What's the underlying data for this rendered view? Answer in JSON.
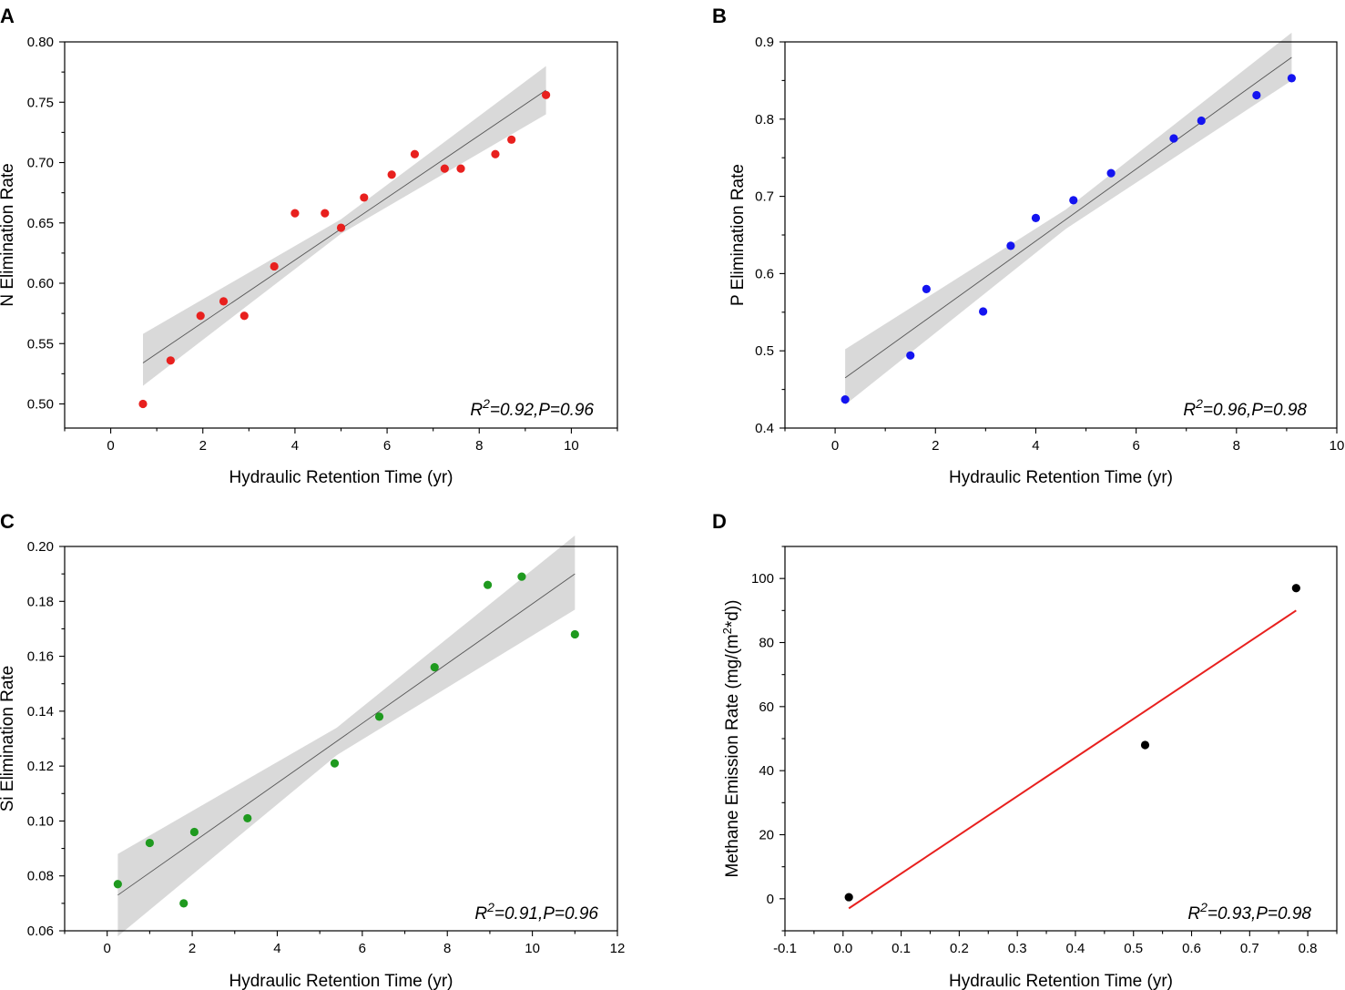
{
  "chart_data": [
    {
      "panel": "A",
      "type": "scatter",
      "xlabel": "Hydraulic Retention Time (yr)",
      "ylabel": "N Elimination Rate",
      "xlim": [
        -1,
        11
      ],
      "ylim": [
        0.48,
        0.8
      ],
      "xticks": [
        0,
        2,
        4,
        6,
        8,
        10
      ],
      "yticks": [
        0.5,
        0.55,
        0.6,
        0.65,
        0.7,
        0.75,
        0.8
      ],
      "ytick_decimals": 2,
      "point_color": "#e8201e",
      "points": [
        {
          "x": 0.7,
          "y": 0.5
        },
        {
          "x": 1.3,
          "y": 0.536
        },
        {
          "x": 1.95,
          "y": 0.573
        },
        {
          "x": 2.45,
          "y": 0.585
        },
        {
          "x": 2.9,
          "y": 0.573
        },
        {
          "x": 3.55,
          "y": 0.614
        },
        {
          "x": 4.0,
          "y": 0.658
        },
        {
          "x": 4.65,
          "y": 0.658
        },
        {
          "x": 5.0,
          "y": 0.646
        },
        {
          "x": 5.5,
          "y": 0.671
        },
        {
          "x": 6.1,
          "y": 0.69
        },
        {
          "x": 6.6,
          "y": 0.707
        },
        {
          "x": 7.25,
          "y": 0.695
        },
        {
          "x": 7.6,
          "y": 0.695
        },
        {
          "x": 8.35,
          "y": 0.707
        },
        {
          "x": 8.7,
          "y": 0.719
        },
        {
          "x": 9.45,
          "y": 0.756
        }
      ],
      "fit": {
        "x": [
          0.7,
          9.45
        ],
        "y": [
          0.534,
          0.76
        ]
      },
      "band": {
        "x": [
          0.7,
          5.0,
          9.45
        ],
        "lower": [
          0.515,
          0.641,
          0.74
        ],
        "upper": [
          0.558,
          0.653,
          0.78
        ]
      },
      "fit_color": "#555555",
      "band_color": "#d9d9d9",
      "stat_r": "R",
      "stat_sup": "2",
      "stat_rest": "=0.92,P=0.96"
    },
    {
      "panel": "B",
      "type": "scatter",
      "xlabel": "Hydraulic Retention Time (yr)",
      "ylabel": "P Elimination Rate",
      "xlim": [
        -1,
        10
      ],
      "ylim": [
        0.4,
        0.9
      ],
      "xticks": [
        0,
        2,
        4,
        6,
        8,
        10
      ],
      "yticks": [
        0.4,
        0.5,
        0.6,
        0.7,
        0.8,
        0.9
      ],
      "ytick_decimals": 1,
      "point_color": "#1414f0",
      "points": [
        {
          "x": 0.2,
          "y": 0.437
        },
        {
          "x": 1.5,
          "y": 0.494
        },
        {
          "x": 1.82,
          "y": 0.58
        },
        {
          "x": 2.95,
          "y": 0.551
        },
        {
          "x": 3.5,
          "y": 0.636
        },
        {
          "x": 4.0,
          "y": 0.672
        },
        {
          "x": 4.75,
          "y": 0.695
        },
        {
          "x": 5.5,
          "y": 0.73
        },
        {
          "x": 6.75,
          "y": 0.775
        },
        {
          "x": 7.3,
          "y": 0.798
        },
        {
          "x": 8.4,
          "y": 0.831
        },
        {
          "x": 9.1,
          "y": 0.853
        }
      ],
      "fit": {
        "x": [
          0.2,
          9.1
        ],
        "y": [
          0.465,
          0.88
        ]
      },
      "band": {
        "x": [
          0.2,
          4.6,
          9.1
        ],
        "lower": [
          0.43,
          0.658,
          0.85
        ],
        "upper": [
          0.502,
          0.683,
          0.912
        ]
      },
      "fit_color": "#555555",
      "band_color": "#d9d9d9",
      "stat_r": "R",
      "stat_sup": "2",
      "stat_rest": "=0.96,P=0.98"
    },
    {
      "panel": "C",
      "type": "scatter",
      "xlabel": "Hydraulic Retention Time (yr)",
      "ylabel": "Si Elimination Rate",
      "xlim": [
        -1,
        12
      ],
      "ylim": [
        0.06,
        0.2
      ],
      "xticks": [
        0,
        2,
        4,
        6,
        8,
        10,
        12
      ],
      "yticks": [
        0.06,
        0.08,
        0.1,
        0.12,
        0.14,
        0.16,
        0.18,
        0.2
      ],
      "ytick_decimals": 2,
      "point_color": "#1f9a1f",
      "points": [
        {
          "x": 0.25,
          "y": 0.077
        },
        {
          "x": 1.0,
          "y": 0.092
        },
        {
          "x": 1.8,
          "y": 0.07
        },
        {
          "x": 2.05,
          "y": 0.096
        },
        {
          "x": 3.3,
          "y": 0.101
        },
        {
          "x": 5.35,
          "y": 0.121
        },
        {
          "x": 6.4,
          "y": 0.138
        },
        {
          "x": 7.7,
          "y": 0.156
        },
        {
          "x": 8.95,
          "y": 0.186
        },
        {
          "x": 9.75,
          "y": 0.189
        },
        {
          "x": 11.0,
          "y": 0.168
        }
      ],
      "fit": {
        "x": [
          0.25,
          11.0
        ],
        "y": [
          0.073,
          0.19
        ]
      },
      "band": {
        "x": [
          0.25,
          5.4,
          11.0
        ],
        "lower": [
          0.058,
          0.124,
          0.177
        ],
        "upper": [
          0.088,
          0.134,
          0.204
        ]
      },
      "fit_color": "#555555",
      "band_color": "#d9d9d9",
      "stat_r": "R",
      "stat_sup": "2",
      "stat_rest": "=0.91,P=0.96"
    },
    {
      "panel": "D",
      "type": "scatter",
      "xlabel": "Hydraulic Retention Time (yr)",
      "ylabel_main": "Methane Emission Rate (mg/(m",
      "ylabel_sup": "2",
      "ylabel_end": "*d))",
      "xlim": [
        -0.1,
        0.85
      ],
      "ylim": [
        -10,
        110
      ],
      "xticks": [
        -0.1,
        0.0,
        0.1,
        0.2,
        0.3,
        0.4,
        0.5,
        0.6,
        0.7,
        0.8
      ],
      "xtick_decimals": 1,
      "yticks": [
        0,
        20,
        40,
        60,
        80,
        100
      ],
      "ytick_decimals": 0,
      "point_color": "#000000",
      "points": [
        {
          "x": 0.01,
          "y": 0.5
        },
        {
          "x": 0.52,
          "y": 48
        },
        {
          "x": 0.78,
          "y": 97
        }
      ],
      "fit": {
        "x": [
          0.01,
          0.78
        ],
        "y": [
          -3,
          90
        ]
      },
      "fit_color": "#e8201e",
      "stat_r": "R",
      "stat_sup": "2",
      "stat_rest": "=0.93,P=0.98"
    }
  ]
}
